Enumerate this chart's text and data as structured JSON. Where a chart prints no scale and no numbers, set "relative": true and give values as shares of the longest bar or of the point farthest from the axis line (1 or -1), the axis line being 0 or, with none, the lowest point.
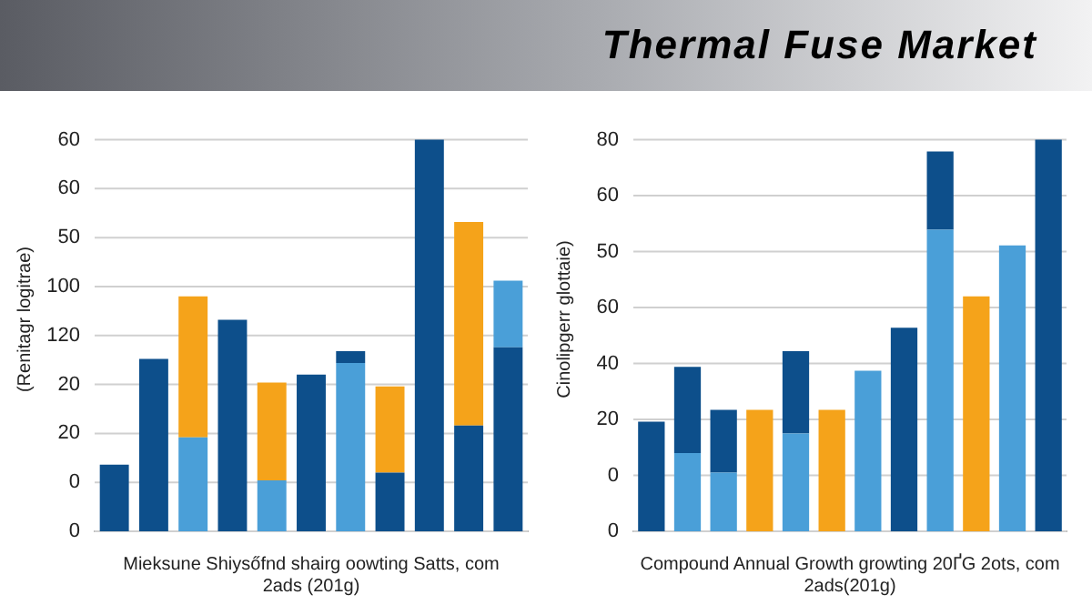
{
  "chart_data": [
    {
      "type": "bar",
      "xlabel": "Mieksune Shiysőfnd shairg oowting Satts, com\n2ads (201g)",
      "ylabel": "(Renitagr logitrae)",
      "stacked": true,
      "relative": true,
      "grid": "y",
      "categories": [
        null,
        null,
        null,
        null,
        null,
        null,
        null,
        null,
        null,
        null,
        null
      ],
      "annotations": [
        "60",
        "60",
        "50",
        "100",
        "120",
        "20",
        "20",
        "0",
        "0"
      ],
      "series": [
        {
          "color": "#0d4f8b",
          "values": [
            0.17,
            0.44,
            null,
            0.54,
            null,
            0.4,
            null,
            0.15,
            1,
            0.27,
            0.47
          ]
        },
        {
          "color": "#4a9fd8",
          "values": [
            null,
            null,
            0.24,
            null,
            0.13,
            null,
            0.43,
            null,
            null,
            null,
            0.17
          ]
        },
        {
          "color": "#0d4f8b",
          "values": [
            null,
            null,
            null,
            null,
            null,
            null,
            0.03,
            null,
            null,
            null,
            null
          ]
        },
        {
          "color": "#f5a31a",
          "values": [
            null,
            null,
            0.36,
            null,
            0.25,
            null,
            null,
            0.22,
            null,
            0.52,
            null
          ]
        }
      ]
    },
    {
      "type": "bar",
      "title": "Thermal Fuse Market",
      "xlabel": "Compound Annual Growth growting 20ҐG 2ots, com\n2ads(201g)",
      "ylabel": "Cinolipgerr glottaie)",
      "stacked": true,
      "relative": true,
      "grid": "y",
      "categories": [
        null,
        null,
        null,
        null,
        null,
        null,
        null,
        null,
        null,
        null,
        null,
        null
      ],
      "annotations": [
        "80",
        "60",
        "50",
        "60",
        "40",
        "20",
        "0",
        "0"
      ],
      "series": [
        {
          "color": "#4a9fd8",
          "values": [
            null,
            0.2,
            0.15,
            null,
            0.25,
            null,
            0.41,
            null,
            0.77,
            null,
            0.73,
            null
          ]
        },
        {
          "color": "#0d4f8b",
          "values": [
            0.28,
            0.22,
            0.16,
            null,
            0.21,
            null,
            null,
            0.52,
            0.2,
            null,
            null,
            1
          ]
        },
        {
          "color": "#f5a31a",
          "values": [
            null,
            null,
            null,
            0.31,
            null,
            0.31,
            null,
            null,
            null,
            0.6,
            null,
            null
          ]
        }
      ]
    }
  ]
}
